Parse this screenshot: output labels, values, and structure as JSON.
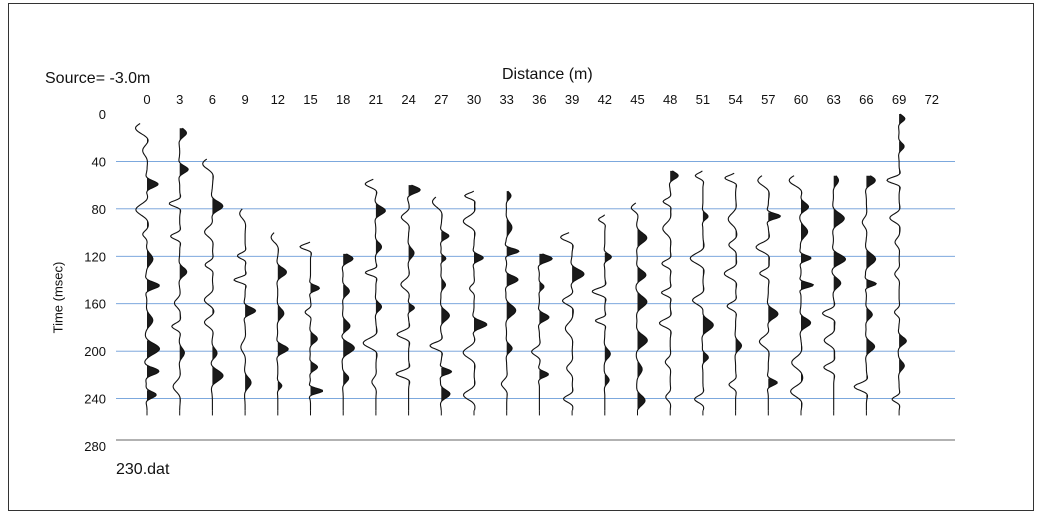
{
  "figure": {
    "source_label": "Source= -3.0m",
    "file_label": "230.dat"
  },
  "chart_data": {
    "type": "line",
    "title": "",
    "xlabel": "Distance (m)",
    "ylabel": "Time (msec)",
    "x_ticks": [
      0,
      3,
      6,
      9,
      12,
      15,
      18,
      21,
      24,
      27,
      30,
      33,
      36,
      39,
      42,
      45,
      48,
      51,
      54,
      57,
      60,
      63,
      66,
      69,
      72
    ],
    "y_ticks": [
      0,
      40,
      80,
      120,
      160,
      200,
      240,
      280
    ],
    "xlim": [
      0,
      72
    ],
    "ylim": [
      0,
      280
    ],
    "y_inverted": true,
    "gridlines_y": [
      40,
      80,
      120,
      160,
      200,
      240
    ],
    "grid_color": "#6a9bd8",
    "trace_record_end": 250,
    "trace_offsets_m": [
      0,
      3,
      6,
      9,
      12,
      15,
      18,
      21,
      24,
      27,
      30,
      33,
      36,
      39,
      42,
      45,
      48,
      51,
      54,
      57,
      60,
      63,
      66,
      69
    ],
    "first_arrival_times_ms": [
      8,
      12,
      38,
      80,
      100,
      108,
      118,
      55,
      60,
      70,
      65,
      65,
      118,
      100,
      85,
      75,
      48,
      48,
      50,
      52,
      52,
      52,
      52,
      0
    ],
    "series": []
  }
}
